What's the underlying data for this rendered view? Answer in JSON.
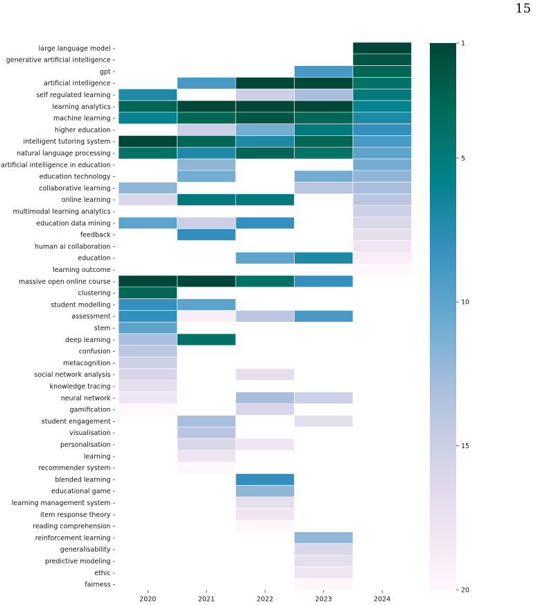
{
  "page_number": "15",
  "chart_data": {
    "type": "heatmap",
    "x_categories": [
      "2020",
      "2021",
      "2022",
      "2023",
      "2024"
    ],
    "y_categories": [
      "large language model",
      "generative artificial intelligence",
      "gpt",
      "artificial intelligence",
      "self regulated learning",
      "learning analytics",
      "machine learning",
      "higher education",
      "intelligent tutoring system",
      "natural language processing",
      "artificial intelligence in education",
      "education technology",
      "collaborative learning",
      "online learning",
      "multimodal learning analytics",
      "education data mining",
      "feedback",
      "human ai collaboration",
      "education",
      "learning outcome",
      "massive open online course",
      "clustering",
      "student modelling",
      "assessment",
      "stem",
      "deep learning",
      "confusion",
      "metacognition",
      "social network analysis",
      "knowledge tracing",
      "neural network",
      "gamification",
      "student engagement",
      "visualisation",
      "personalisation",
      "learning",
      "recommender system",
      "blended learning",
      "educational game",
      "learning management system",
      "item response theory",
      "reading comprehension",
      "reinforcement learning",
      "generalisability",
      "predictive modeling",
      "ethic",
      "fairness"
    ],
    "values": [
      [
        null,
        null,
        null,
        null,
        1
      ],
      [
        null,
        null,
        null,
        null,
        2
      ],
      [
        null,
        null,
        null,
        9,
        3
      ],
      [
        null,
        9,
        1,
        1,
        4
      ],
      [
        7,
        null,
        15,
        13,
        5
      ],
      [
        3,
        1,
        1,
        1,
        6
      ],
      [
        6,
        3,
        2,
        3,
        7
      ],
      [
        null,
        15,
        11,
        5,
        8
      ],
      [
        1,
        3,
        7,
        3,
        9
      ],
      [
        4,
        7,
        3,
        4,
        10
      ],
      [
        null,
        12,
        null,
        null,
        11
      ],
      [
        null,
        11,
        null,
        11,
        12
      ],
      [
        12,
        null,
        null,
        14,
        13
      ],
      [
        16,
        5,
        5,
        null,
        14
      ],
      [
        null,
        null,
        null,
        null,
        15
      ],
      [
        10,
        15,
        8,
        null,
        16
      ],
      [
        null,
        8,
        null,
        null,
        17
      ],
      [
        null,
        null,
        null,
        null,
        18
      ],
      [
        null,
        null,
        10,
        7,
        19
      ],
      [
        null,
        null,
        null,
        null,
        20
      ],
      [
        1,
        1,
        4,
        8,
        null
      ],
      [
        3,
        null,
        null,
        null,
        null
      ],
      [
        8,
        10,
        null,
        null,
        null
      ],
      [
        8,
        19,
        14,
        9,
        null
      ],
      [
        10,
        null,
        null,
        null,
        null
      ],
      [
        13,
        4,
        null,
        null,
        null
      ],
      [
        14,
        null,
        null,
        null,
        null
      ],
      [
        15,
        null,
        null,
        null,
        null
      ],
      [
        16,
        null,
        17,
        null,
        null
      ],
      [
        17,
        null,
        null,
        null,
        null
      ],
      [
        18,
        null,
        13,
        15,
        null
      ],
      [
        20,
        null,
        16,
        null,
        null
      ],
      [
        null,
        13,
        null,
        17,
        null
      ],
      [
        null,
        14,
        null,
        null,
        null
      ],
      [
        null,
        16,
        18,
        null,
        null
      ],
      [
        null,
        18,
        null,
        null,
        null
      ],
      [
        null,
        20,
        null,
        null,
        null
      ],
      [
        null,
        null,
        8,
        null,
        null
      ],
      [
        null,
        null,
        12,
        null,
        null
      ],
      [
        null,
        null,
        17,
        null,
        null
      ],
      [
        null,
        null,
        18,
        null,
        null
      ],
      [
        null,
        null,
        20,
        null,
        null
      ],
      [
        null,
        null,
        null,
        12,
        null
      ],
      [
        null,
        null,
        null,
        16,
        null
      ],
      [
        null,
        null,
        null,
        17,
        null
      ],
      [
        null,
        null,
        null,
        18,
        null
      ],
      [
        null,
        null,
        null,
        20,
        null
      ]
    ],
    "colorbar": {
      "min": 1,
      "max": 20,
      "ticks": [
        1,
        5,
        10,
        15,
        20
      ],
      "colormap": "PuBuGn_r"
    },
    "title": "",
    "xlabel": "",
    "ylabel": "",
    "grid": false,
    "legend": "colorbar-right"
  }
}
